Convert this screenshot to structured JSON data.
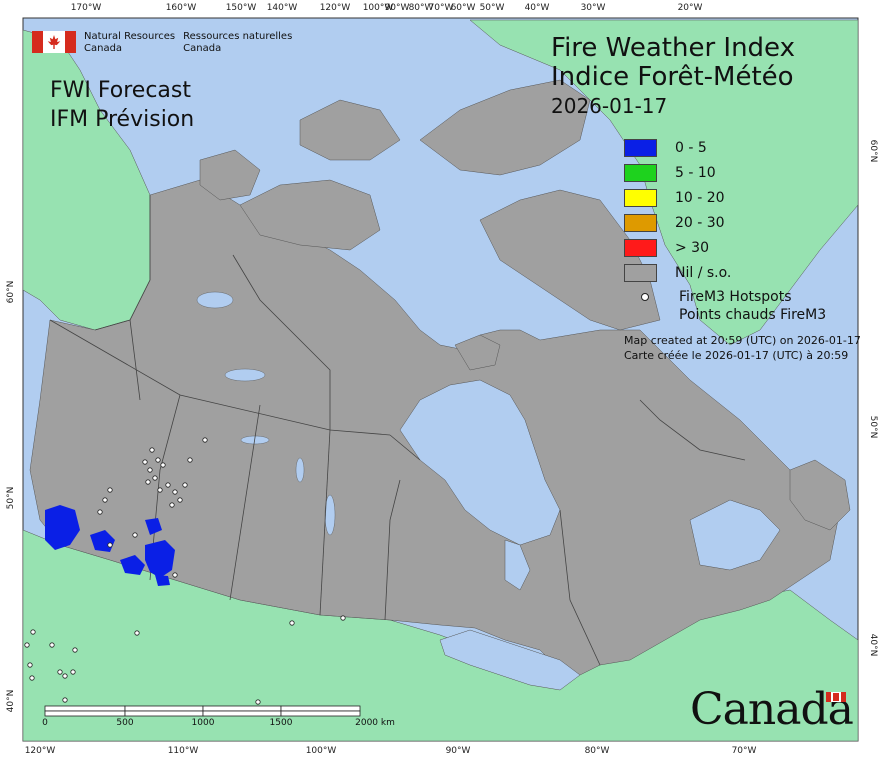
{
  "agency": {
    "en_line1": "Natural Resources",
    "en_line2": "Canada",
    "fr_line1": "Ressources naturelles",
    "fr_line2": "Canada"
  },
  "forecast": {
    "en": "FWI Forecast",
    "fr": "IFM Prévision"
  },
  "title": {
    "en": "Fire Weather Index",
    "fr": "Indice Forêt-Météo",
    "date": "2026-01-17"
  },
  "legend": [
    {
      "label": "0 - 5",
      "color": "#0a1fe6"
    },
    {
      "label": "5 - 10",
      "color": "#1ed21e"
    },
    {
      "label": "10 - 20",
      "color": "#ffff00"
    },
    {
      "label": "20 - 30",
      "color": "#de9a00"
    },
    {
      "label": "> 30",
      "color": "#ff1a1a"
    },
    {
      "label": "Nil / s.o.",
      "color": "#a0a0a0"
    }
  ],
  "hotspots": {
    "en": "FireM3 Hotspots",
    "fr": "Points chauds FireM3"
  },
  "created": {
    "en": "Map created at 20:59 (UTC) on 2026-01-17",
    "fr": "Carte créée le 2026-01-17 (UTC) à 20:59"
  },
  "axes": {
    "top": [
      "170°W",
      "160°W",
      "150°W",
      "140°W",
      "120°W",
      "100°W",
      "90°W",
      "80°W",
      "70°W",
      "60°W",
      "50°W",
      "40°W",
      "30°W",
      "20°W"
    ],
    "bottom": [
      "120°W",
      "110°W",
      "100°W",
      "90°W",
      "80°W",
      "70°W"
    ],
    "left": [
      "60°N",
      "50°N",
      "40°N"
    ],
    "right": [
      "60°N",
      "50°N",
      "40°N"
    ]
  },
  "scale": {
    "labels": [
      "0",
      "500",
      "1000",
      "1500",
      "2000 km"
    ]
  },
  "wordmark": "Canada",
  "colors": {
    "water": "#b1cdf0",
    "foreign_land": "#97e2b1",
    "canada_nil": "#a0a0a0"
  }
}
